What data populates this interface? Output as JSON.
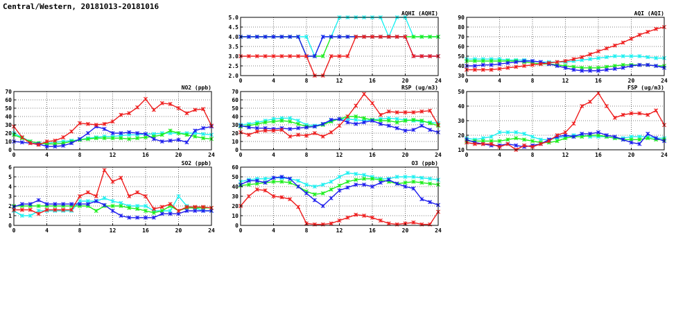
{
  "page": {
    "title": "Central/Western, 20181013-20181016"
  },
  "colors": {
    "red": "#ee1c1c",
    "blue": "#1c1cee",
    "green": "#1cee1c",
    "cyan": "#1cf0f0"
  },
  "chart_data": [
    {
      "id": "aqhi",
      "type": "line",
      "title": "AQHI (AQHI)",
      "xlim": [
        0,
        24
      ],
      "xticks": [
        0,
        4,
        8,
        12,
        16,
        20,
        24
      ],
      "ylim": [
        2,
        5
      ],
      "yticks": [
        "2.0",
        "2.5",
        "3.0",
        "3.5",
        "4.0",
        "4.5",
        "5.0"
      ],
      "grid": true,
      "series": [
        {
          "color": "cyan",
          "values": [
            4,
            4,
            4,
            4,
            4,
            4,
            4,
            4,
            4,
            3,
            4,
            4,
            5,
            5,
            5,
            5,
            5,
            5,
            4,
            5,
            5,
            4,
            4,
            4,
            4
          ]
        },
        {
          "color": "green",
          "values": [
            4,
            4,
            4,
            4,
            4,
            4,
            4,
            4,
            3,
            3,
            3,
            4,
            4,
            4,
            4,
            4,
            4,
            4,
            4,
            4,
            4,
            4,
            4,
            4,
            4
          ]
        },
        {
          "color": "blue",
          "values": [
            4,
            4,
            4,
            4,
            4,
            4,
            4,
            4,
            3,
            3,
            4,
            4,
            4,
            4,
            4,
            4,
            4,
            4,
            4,
            4,
            4,
            3,
            3,
            3,
            3
          ]
        },
        {
          "color": "red",
          "values": [
            3,
            3,
            3,
            3,
            3,
            3,
            3,
            3,
            3,
            2,
            2,
            3,
            3,
            3,
            4,
            4,
            4,
            4,
            4,
            4,
            4,
            3,
            3,
            3,
            3
          ]
        }
      ]
    },
    {
      "id": "aqi",
      "type": "line",
      "title": "AQI (AQI)",
      "xlim": [
        0,
        24
      ],
      "xticks": [
        0,
        4,
        8,
        12,
        16,
        20,
        24
      ],
      "ylim": [
        30,
        90
      ],
      "yticks": [
        30,
        40,
        50,
        60,
        70,
        80,
        90
      ],
      "grid": true,
      "series": [
        {
          "color": "cyan",
          "values": [
            47,
            47,
            47,
            47,
            47,
            46,
            46,
            46,
            45,
            44,
            44,
            44,
            44,
            45,
            46,
            47,
            48,
            49,
            50,
            50,
            50,
            50,
            49,
            48,
            48
          ]
        },
        {
          "color": "green",
          "values": [
            45,
            45,
            45,
            45,
            45,
            45,
            45,
            44,
            43,
            42,
            42,
            41,
            40,
            39,
            38,
            38,
            38,
            39,
            40,
            41,
            41,
            41,
            41,
            40,
            40
          ]
        },
        {
          "color": "blue",
          "values": [
            40,
            40,
            41,
            41,
            42,
            43,
            44,
            45,
            45,
            44,
            42,
            40,
            38,
            36,
            35,
            35,
            35,
            36,
            37,
            38,
            40,
            41,
            41,
            40,
            38
          ]
        },
        {
          "color": "red",
          "values": [
            36,
            36,
            36,
            36,
            37,
            38,
            39,
            40,
            41,
            42,
            43,
            44,
            45,
            47,
            49,
            52,
            55,
            58,
            61,
            64,
            68,
            72,
            75,
            78,
            80
          ]
        }
      ]
    },
    {
      "id": "no2",
      "type": "line",
      "title": "NO2 (ppb)",
      "xlim": [
        0,
        24
      ],
      "xticks": [
        0,
        4,
        8,
        12,
        16,
        20,
        24
      ],
      "ylim": [
        0,
        70
      ],
      "yticks": [
        0,
        10,
        20,
        30,
        40,
        50,
        60,
        70
      ],
      "grid": true,
      "series": [
        {
          "color": "cyan",
          "values": [
            20,
            15,
            10,
            8,
            8,
            9,
            10,
            11,
            12,
            14,
            15,
            16,
            16,
            17,
            18,
            18,
            19,
            19,
            20,
            20,
            20,
            20,
            20,
            19,
            18
          ]
        },
        {
          "color": "green",
          "values": [
            18,
            14,
            10,
            8,
            7,
            7,
            8,
            10,
            12,
            13,
            14,
            14,
            14,
            14,
            13,
            14,
            15,
            16,
            18,
            23,
            20,
            18,
            16,
            14,
            13
          ]
        },
        {
          "color": "blue",
          "values": [
            10,
            9,
            8,
            7,
            4,
            4,
            5,
            8,
            13,
            20,
            28,
            25,
            20,
            20,
            21,
            20,
            19,
            13,
            10,
            11,
            12,
            9,
            23,
            26,
            28
          ]
        },
        {
          "color": "red",
          "values": [
            28,
            15,
            8,
            6,
            10,
            11,
            15,
            22,
            32,
            31,
            30,
            31,
            34,
            42,
            44,
            51,
            61,
            48,
            56,
            55,
            50,
            44,
            48,
            49,
            29
          ]
        }
      ]
    },
    {
      "id": "rsp",
      "type": "line",
      "title": "RSP (ug/m3)",
      "xlim": [
        0,
        24
      ],
      "xticks": [
        0,
        4,
        8,
        12,
        16,
        20,
        24
      ],
      "ylim": [
        0,
        70
      ],
      "yticks": [
        0,
        10,
        20,
        30,
        40,
        50,
        60,
        70
      ],
      "grid": true,
      "series": [
        {
          "color": "cyan",
          "values": [
            30,
            31,
            33,
            35,
            37,
            38,
            38,
            35,
            30,
            29,
            31,
            35,
            37,
            37,
            36,
            35,
            36,
            37,
            38,
            37,
            36,
            35,
            34,
            33,
            32
          ]
        },
        {
          "color": "green",
          "values": [
            28,
            29,
            31,
            33,
            34,
            35,
            34,
            31,
            28,
            28,
            30,
            34,
            37,
            40,
            40,
            38,
            36,
            35,
            35,
            33,
            35,
            36,
            35,
            32,
            29
          ]
        },
        {
          "color": "blue",
          "values": [
            29,
            27,
            26,
            26,
            25,
            26,
            25,
            26,
            27,
            28,
            31,
            36,
            37,
            33,
            31,
            33,
            35,
            31,
            29,
            26,
            23,
            24,
            29,
            24,
            21
          ]
        },
        {
          "color": "red",
          "values": [
            21,
            18,
            22,
            23,
            23,
            24,
            16,
            18,
            17,
            20,
            16,
            21,
            29,
            40,
            53,
            67,
            56,
            42,
            46,
            45,
            45,
            45,
            46,
            47,
            30
          ]
        }
      ]
    },
    {
      "id": "fsp",
      "type": "line",
      "title": "FSP (ug/m3)",
      "xlim": [
        0,
        24
      ],
      "xticks": [
        0,
        4,
        8,
        12,
        16,
        20,
        24
      ],
      "ylim": [
        10,
        50
      ],
      "yticks": [
        10,
        20,
        30,
        40,
        50
      ],
      "grid": true,
      "series": [
        {
          "color": "cyan",
          "values": [
            18,
            17,
            18,
            19,
            22,
            22,
            22,
            21,
            19,
            17,
            17,
            18,
            19,
            20,
            20,
            19,
            19,
            19,
            18,
            18,
            19,
            19,
            19,
            18,
            18
          ]
        },
        {
          "color": "green",
          "values": [
            16,
            16,
            16,
            16,
            16,
            17,
            18,
            17,
            16,
            15,
            15,
            16,
            18,
            19,
            19,
            20,
            20,
            19,
            18,
            17,
            17,
            17,
            18,
            17,
            17
          ]
        },
        {
          "color": "blue",
          "values": [
            17,
            15,
            14,
            13,
            13,
            14,
            13,
            12,
            13,
            14,
            17,
            19,
            20,
            19,
            21,
            21,
            22,
            20,
            19,
            17,
            15,
            14,
            21,
            18,
            16
          ]
        },
        {
          "color": "red",
          "values": [
            15,
            14,
            14,
            14,
            12,
            14,
            10,
            13,
            12,
            14,
            16,
            20,
            22,
            28,
            40,
            43,
            49,
            40,
            32,
            34,
            35,
            35,
            34,
            37,
            27
          ]
        }
      ]
    },
    {
      "id": "so2",
      "type": "line",
      "title": "SO2 (ppb)",
      "xlim": [
        0,
        24
      ],
      "xticks": [
        0,
        4,
        8,
        12,
        16,
        20,
        24
      ],
      "ylim": [
        0,
        6
      ],
      "yticks": [
        0,
        1,
        2,
        3,
        4,
        5,
        6
      ],
      "grid": true,
      "series": [
        {
          "color": "cyan",
          "values": [
            1.5,
            1.0,
            1.0,
            1.5,
            1.5,
            1.5,
            1.5,
            1.5,
            2.5,
            2.5,
            2.5,
            2.8,
            2.5,
            2.3,
            2.0,
            2.0,
            2.0,
            1.5,
            1.5,
            1.5,
            3.0,
            2.0,
            1.8,
            1.5,
            1.5
          ]
        },
        {
          "color": "green",
          "values": [
            2.0,
            2.0,
            2.0,
            2.0,
            2.0,
            2.0,
            2.0,
            2.0,
            2.0,
            2.0,
            1.5,
            2.0,
            2.0,
            2.0,
            1.8,
            1.7,
            1.5,
            1.3,
            1.5,
            2.0,
            1.5,
            1.8,
            1.8,
            1.8,
            1.8
          ]
        },
        {
          "color": "blue",
          "values": [
            1.9,
            2.2,
            2.2,
            2.6,
            2.2,
            2.2,
            2.2,
            2.2,
            2.2,
            2.2,
            2.5,
            2.1,
            1.5,
            1.0,
            0.8,
            0.8,
            0.8,
            0.8,
            1.2,
            1.2,
            1.2,
            1.5,
            1.5,
            1.5,
            1.5
          ]
        },
        {
          "color": "red",
          "values": [
            1.6,
            1.6,
            1.6,
            1.2,
            1.6,
            1.6,
            1.6,
            1.6,
            3.0,
            3.4,
            3.0,
            5.7,
            4.5,
            4.9,
            3.0,
            3.4,
            3.0,
            1.7,
            1.9,
            2.2,
            1.5,
            1.9,
            1.9,
            1.9,
            1.8
          ]
        }
      ]
    },
    {
      "id": "o3",
      "type": "line",
      "title": "O3 (ppb)",
      "xlim": [
        0,
        24
      ],
      "xticks": [
        0,
        4,
        8,
        12,
        16,
        20,
        24
      ],
      "ylim": [
        0,
        60
      ],
      "yticks": [
        0,
        10,
        20,
        30,
        40,
        50,
        60
      ],
      "grid": true,
      "series": [
        {
          "color": "cyan",
          "values": [
            45,
            47,
            48,
            48,
            49,
            49,
            48,
            46,
            42,
            40,
            42,
            45,
            50,
            54,
            53,
            52,
            50,
            48,
            48,
            50,
            50,
            50,
            49,
            48,
            47
          ]
        },
        {
          "color": "green",
          "values": [
            41,
            42,
            43,
            44,
            45,
            45,
            44,
            40,
            35,
            32,
            33,
            37,
            41,
            45,
            47,
            48,
            48,
            47,
            45,
            43,
            44,
            45,
            44,
            43,
            42
          ]
        },
        {
          "color": "blue",
          "values": [
            42,
            46,
            46,
            44,
            49,
            50,
            48,
            40,
            33,
            26,
            20,
            28,
            36,
            39,
            42,
            42,
            40,
            44,
            47,
            43,
            40,
            38,
            27,
            24,
            21
          ]
        },
        {
          "color": "red",
          "values": [
            20,
            30,
            37,
            36,
            30,
            29,
            27,
            19,
            2,
            1,
            1,
            2,
            5,
            8,
            11,
            10,
            8,
            5,
            2,
            1,
            2,
            3,
            1,
            1,
            14
          ]
        }
      ]
    }
  ]
}
